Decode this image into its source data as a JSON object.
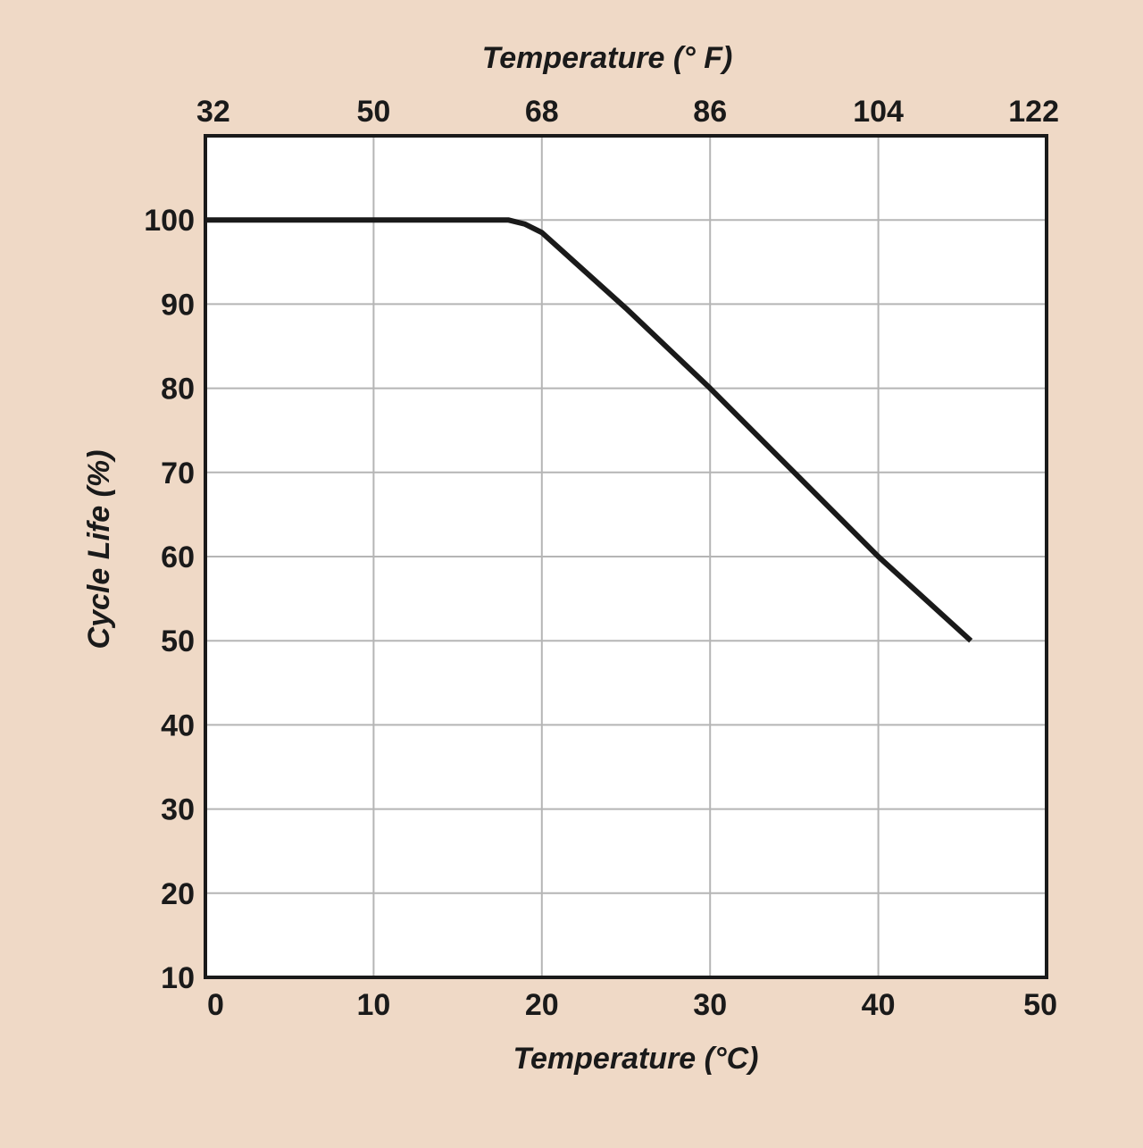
{
  "chart_data": {
    "type": "line",
    "title": "",
    "xlabel": "Temperature (°C)",
    "x2label": "Temperature (° F)",
    "ylabel": "Cycle Life (%)",
    "xlim": [
      0,
      50
    ],
    "ylim": [
      10,
      110
    ],
    "x_ticks": [
      0,
      10,
      20,
      30,
      40,
      50
    ],
    "x_tick_labels": [
      "0",
      "10",
      "20",
      "30",
      "40",
      "50"
    ],
    "x2_ticks": [
      0,
      10,
      20,
      30,
      40,
      50
    ],
    "x2_tick_labels": [
      "32",
      "50",
      "68",
      "86",
      "104",
      "122"
    ],
    "y_ticks": [
      10,
      20,
      30,
      40,
      50,
      60,
      70,
      80,
      90,
      100
    ],
    "y_tick_labels": [
      "10",
      "20",
      "30",
      "40",
      "50",
      "60",
      "70",
      "80",
      "90",
      "100"
    ],
    "grid": true,
    "legend": "none",
    "colors": {
      "background": "#efd9c6",
      "plot_area": "#ffffff",
      "grid": "#b5b5b5",
      "line": "#1a1a1a",
      "frame": "#1a1a1a"
    },
    "series": [
      {
        "x": [
          0,
          10,
          18,
          19,
          20,
          25,
          30,
          35,
          40,
          45.5
        ],
        "y": [
          100,
          100,
          100,
          99.5,
          98.5,
          89.5,
          80,
          70,
          60,
          50
        ]
      }
    ]
  }
}
